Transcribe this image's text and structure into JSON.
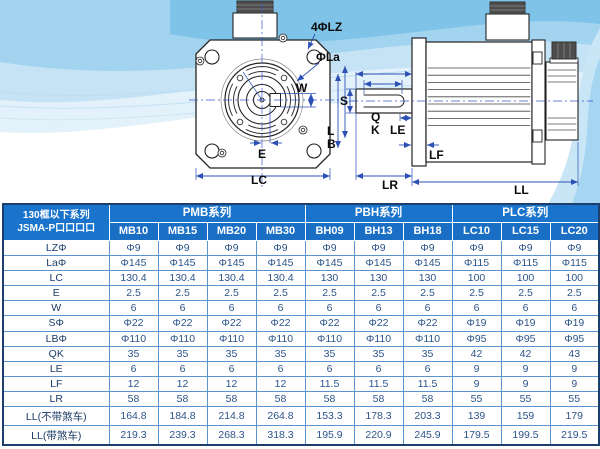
{
  "drawing": {
    "front": {
      "holes_label": "4ΦLZ",
      "pilot_label": "ΦLa",
      "key_width_label": "W",
      "key_offset_label": "E",
      "flange_width_label": "LC"
    },
    "side": {
      "shaft_dia_label": "S",
      "key_len_label": "Q",
      "k_label": "K",
      "le_label": "LE",
      "l_label": "L",
      "b_label": "B",
      "lf_label": "LF",
      "shaft_len_label": "LR",
      "total_len_label": "LL"
    }
  },
  "table": {
    "corner": {
      "line1": "130框以下系列",
      "line2": "JSMA-P口口口口"
    },
    "series": [
      {
        "name": "PMB系列",
        "models": [
          "MB10",
          "MB15",
          "MB20",
          "MB30"
        ]
      },
      {
        "name": "PBH系列",
        "models": [
          "BH09",
          "BH13",
          "BH18"
        ]
      },
      {
        "name": "PLC系列",
        "models": [
          "LC10",
          "LC15",
          "LC20"
        ]
      }
    ],
    "rows": [
      {
        "label": "LZΦ",
        "values": [
          "Φ9",
          "Φ9",
          "Φ9",
          "Φ9",
          "Φ9",
          "Φ9",
          "Φ9",
          "Φ9",
          "Φ9",
          "Φ9"
        ]
      },
      {
        "label": "LaΦ",
        "values": [
          "Φ145",
          "Φ145",
          "Φ145",
          "Φ145",
          "Φ145",
          "Φ145",
          "Φ145",
          "Φ115",
          "Φ115",
          "Φ115"
        ]
      },
      {
        "label": "LC",
        "values": [
          "130.4",
          "130.4",
          "130.4",
          "130.4",
          "130",
          "130",
          "130",
          "100",
          "100",
          "100"
        ]
      },
      {
        "label": "E",
        "values": [
          "2.5",
          "2.5",
          "2.5",
          "2.5",
          "2.5",
          "2.5",
          "2.5",
          "2.5",
          "2.5",
          "2.5"
        ]
      },
      {
        "label": "W",
        "values": [
          "6",
          "6",
          "6",
          "6",
          "6",
          "6",
          "6",
          "6",
          "6",
          "6"
        ]
      },
      {
        "label": "SΦ",
        "values": [
          "Φ22",
          "Φ22",
          "Φ22",
          "Φ22",
          "Φ22",
          "Φ22",
          "Φ22",
          "Φ19",
          "Φ19",
          "Φ19"
        ]
      },
      {
        "label": "LBΦ",
        "values": [
          "Φ110",
          "Φ110",
          "Φ110",
          "Φ110",
          "Φ110",
          "Φ110",
          "Φ110",
          "Φ95",
          "Φ95",
          "Φ95"
        ]
      },
      {
        "label": "QK",
        "values": [
          "35",
          "35",
          "35",
          "35",
          "35",
          "35",
          "35",
          "42",
          "42",
          "43"
        ]
      },
      {
        "label": "LE",
        "values": [
          "6",
          "6",
          "6",
          "6",
          "6",
          "6",
          "6",
          "9",
          "9",
          "9"
        ]
      },
      {
        "label": "LF",
        "values": [
          "12",
          "12",
          "12",
          "12",
          "11.5",
          "11.5",
          "11.5",
          "9",
          "9",
          "9"
        ]
      },
      {
        "label": "LR",
        "values": [
          "58",
          "58",
          "58",
          "58",
          "58",
          "58",
          "58",
          "55",
          "55",
          "55"
        ]
      },
      {
        "label": "LL(不带煞车)",
        "values": [
          "164.8",
          "184.8",
          "214.8",
          "264.8",
          "153.3",
          "178.3",
          "203.3",
          "139",
          "159",
          "179"
        ]
      },
      {
        "label": "LL(带煞车)",
        "values": [
          "219.3",
          "239.3",
          "268.3",
          "318.3",
          "195.9",
          "220.9",
          "245.9",
          "179.5",
          "199.5",
          "219.5"
        ]
      }
    ],
    "colors": {
      "header_bg": "#1b74cb",
      "header_bg2": "#1a6fc4",
      "grid": "#5b93cf",
      "outer_border": "#1c3f6e",
      "label_text": "#1c3c66",
      "value_text": "#2e548a",
      "dimension_line": "#2d50b5"
    }
  }
}
